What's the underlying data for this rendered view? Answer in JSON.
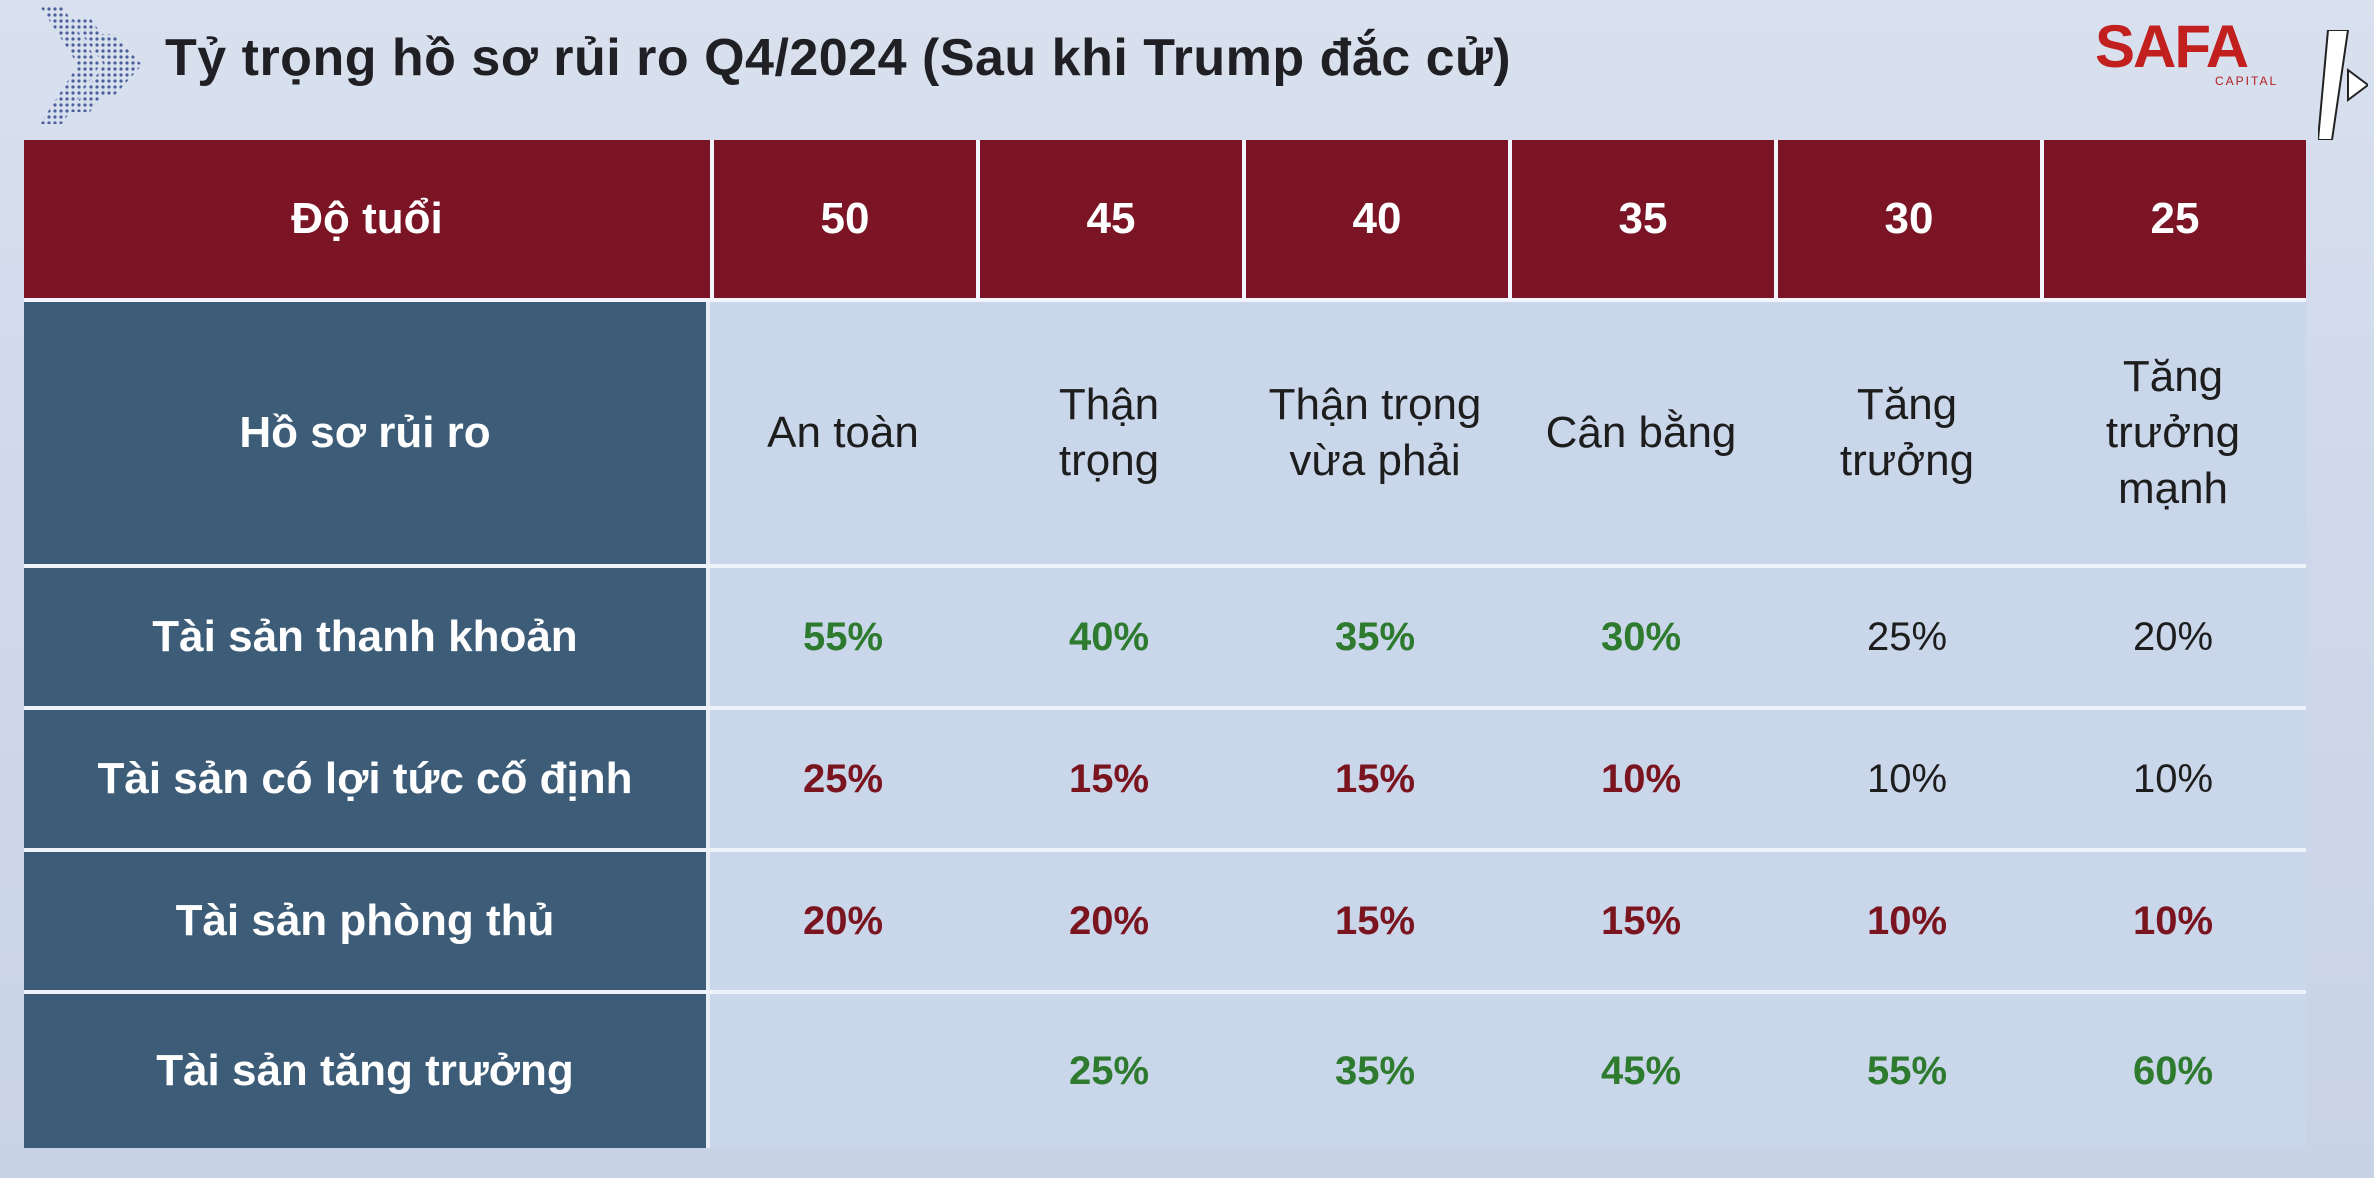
{
  "header": {
    "title": "Tỷ trọng hồ sơ rủi ro Q4/2024 (Sau khi Trump đắc cử)",
    "logo_text": "SAFA",
    "logo_sub": "CAPITAL"
  },
  "table": {
    "age_label": "Độ tuổi",
    "ages": [
      "50",
      "45",
      "40",
      "35",
      "30",
      "25"
    ],
    "profile_label": "Hồ sơ rủi ro",
    "profiles": [
      "An toàn",
      "Thận trọng",
      "Thận trọng vừa phải",
      "Cân bằng",
      "Tăng trưởng",
      "Tăng trưởng mạnh"
    ],
    "rows": [
      {
        "label": "Tài sản thanh khoản",
        "values": [
          "55%",
          "40%",
          "35%",
          "30%",
          "25%",
          "20%"
        ],
        "tones": [
          "green",
          "green",
          "green",
          "green",
          "plain",
          "plain"
        ]
      },
      {
        "label": "Tài sản có lợi tức cố định",
        "values": [
          "25%",
          "15%",
          "15%",
          "10%",
          "10%",
          "10%"
        ],
        "tones": [
          "red",
          "red",
          "red",
          "red",
          "plain",
          "plain"
        ]
      },
      {
        "label": "Tài sản phòng thủ",
        "values": [
          "20%",
          "20%",
          "15%",
          "15%",
          "10%",
          "10%"
        ],
        "tones": [
          "red",
          "red",
          "red",
          "red",
          "red",
          "red"
        ]
      },
      {
        "label": "Tài sản tăng trưởng",
        "values": [
          "",
          "25%",
          "35%",
          "45%",
          "55%",
          "60%"
        ],
        "tones": [
          "green",
          "green",
          "green",
          "green",
          "green",
          "green"
        ]
      }
    ]
  },
  "colors": {
    "header_row": "#7b1525",
    "label_column": "#3c5c78",
    "body_cells": "#cad6ea",
    "green_value": "#2e7a2e",
    "red_value": "#7a1520",
    "logo_red": "#c21f1f"
  },
  "icons": [
    "chevrons-icon",
    "safa-logo"
  ]
}
